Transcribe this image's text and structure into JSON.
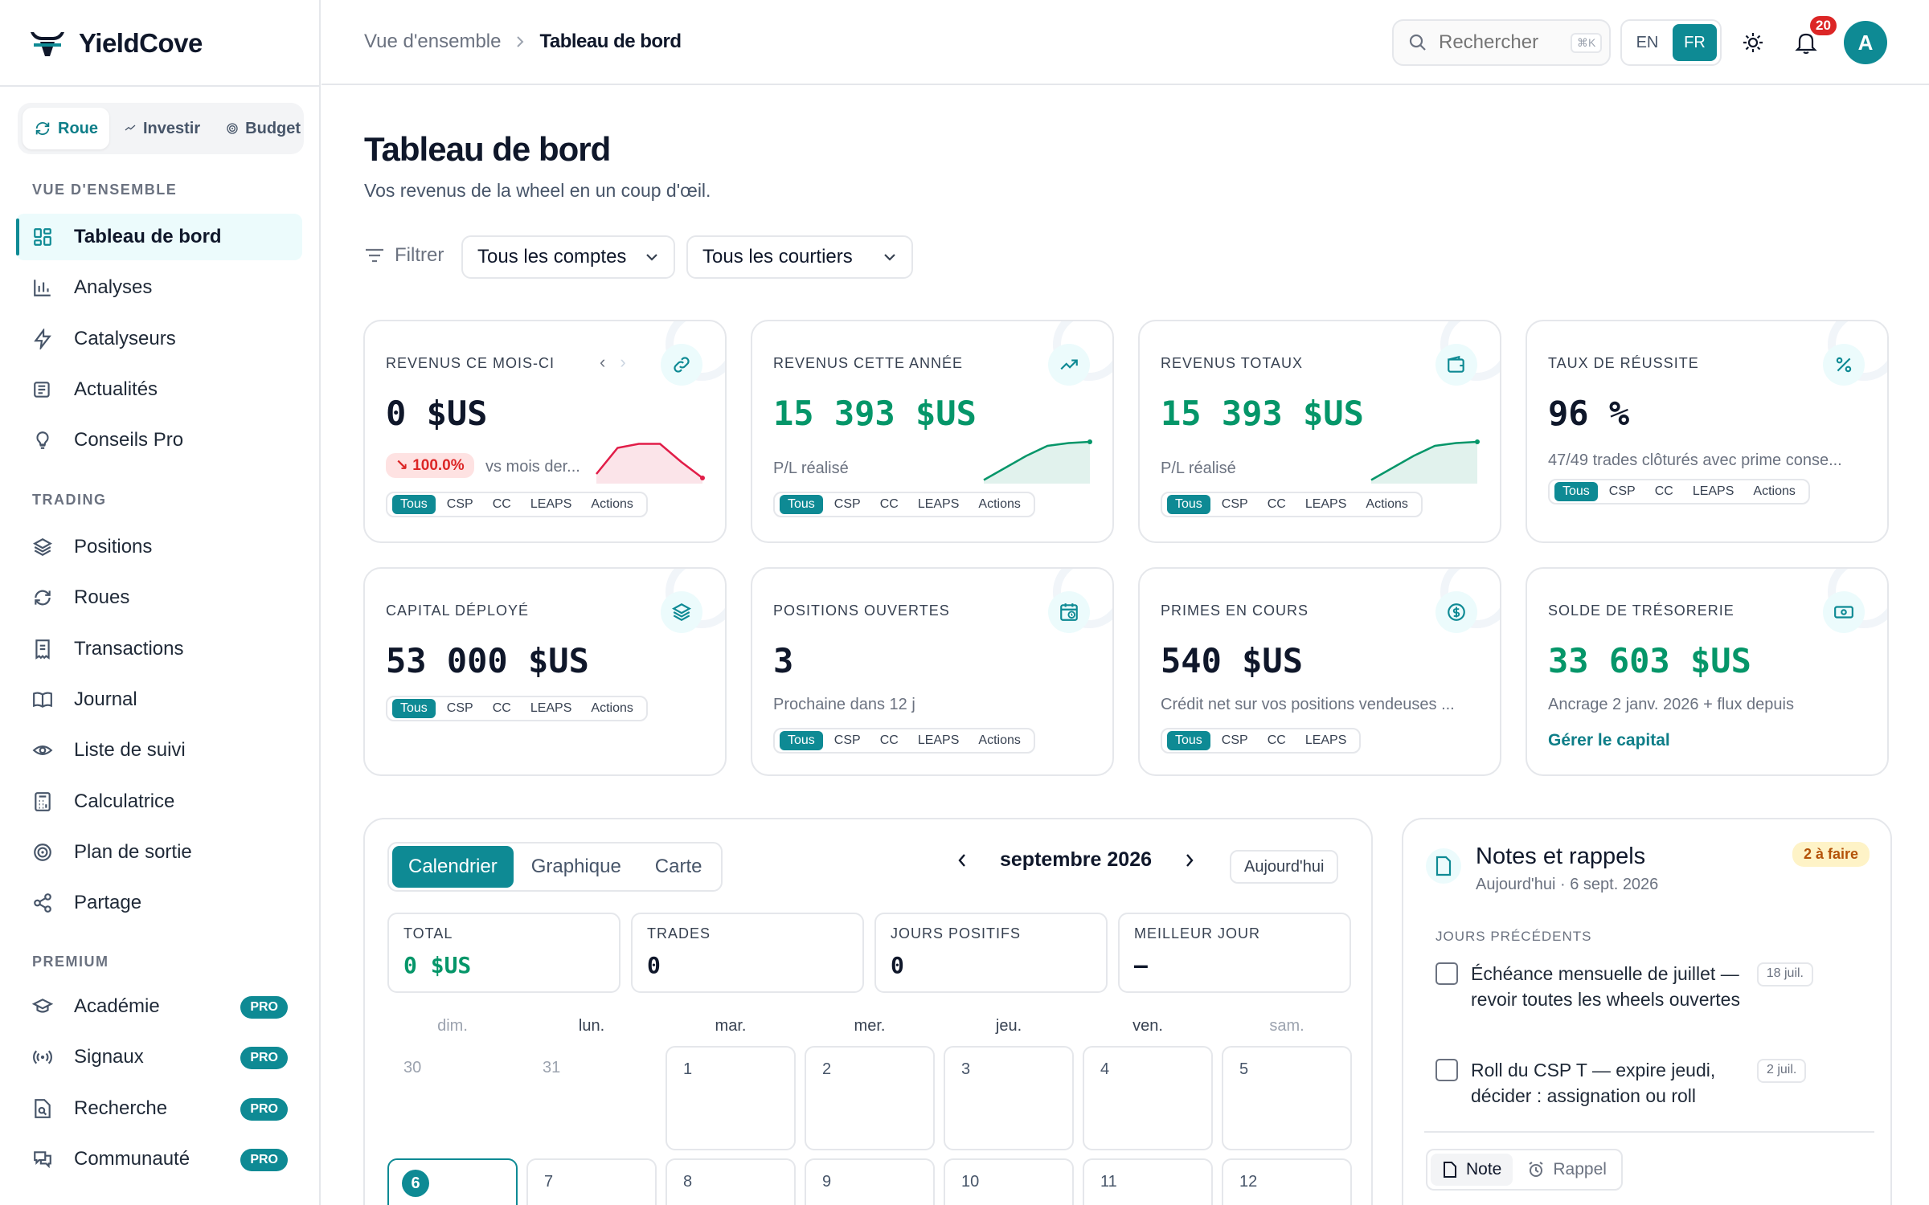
{
  "app": {
    "name": "YieldCove"
  },
  "mode_switch": {
    "items": [
      {
        "label": "Roue",
        "icon": "refresh-icon"
      },
      {
        "label": "Investir",
        "icon": "trend-icon"
      },
      {
        "label": "Budget",
        "icon": "target-icon"
      }
    ],
    "active": "Roue"
  },
  "sidebar": {
    "sections": [
      {
        "title": "VUE D'ENSEMBLE",
        "items": [
          {
            "label": "Tableau de bord",
            "icon": "grid-icon",
            "active": true
          },
          {
            "label": "Analyses",
            "icon": "bar-chart-icon"
          },
          {
            "label": "Catalyseurs",
            "icon": "bolt-icon"
          },
          {
            "label": "Actualités",
            "icon": "newspaper-icon"
          },
          {
            "label": "Conseils Pro",
            "icon": "lightbulb-icon"
          }
        ]
      },
      {
        "title": "TRADING",
        "items": [
          {
            "label": "Positions",
            "icon": "layers-icon"
          },
          {
            "label": "Roues",
            "icon": "refresh-icon"
          },
          {
            "label": "Transactions",
            "icon": "receipt-icon"
          },
          {
            "label": "Journal",
            "icon": "book-icon"
          },
          {
            "label": "Liste de suivi",
            "icon": "eye-icon"
          },
          {
            "label": "Calculatrice",
            "icon": "calculator-icon"
          },
          {
            "label": "Plan de sortie",
            "icon": "target-icon"
          },
          {
            "label": "Partage",
            "icon": "share-icon"
          }
        ]
      },
      {
        "title": "PREMIUM",
        "items": [
          {
            "label": "Académie",
            "icon": "graduation-cap-icon",
            "badge": "PRO"
          },
          {
            "label": "Signaux",
            "icon": "radio-icon",
            "badge": "PRO"
          },
          {
            "label": "Recherche",
            "icon": "file-search-icon",
            "badge": "PRO"
          },
          {
            "label": "Communauté",
            "icon": "chat-icon",
            "badge": "PRO"
          }
        ]
      }
    ]
  },
  "header": {
    "breadcrumb": [
      "Vue d'ensemble",
      "Tableau de bord"
    ],
    "search_placeholder": "Rechercher",
    "search_shortcut": "⌘K",
    "languages": [
      "EN",
      "FR"
    ],
    "active_language": "FR",
    "notifications_count": "20",
    "avatar_initial": "A"
  },
  "page": {
    "title": "Tableau de bord",
    "subtitle": "Vos revenus de la wheel en un coup d'œil.",
    "filter_label": "Filtrer",
    "account_filter": "Tous les comptes",
    "broker_filter": "Tous les courtiers"
  },
  "cards": [
    {
      "label": "REVENUS CE MOIS-CI",
      "value": "0 $US",
      "delta": "↘ 100.0%",
      "sub": "vs mois der...",
      "pills": [
        "Tous",
        "CSP",
        "CC",
        "LEAPS",
        "Actions"
      ],
      "icon": "link-icon",
      "spark_color": "#e11d48",
      "spark": [
        0.2,
        0.85,
        0.95,
        0.95,
        0.5,
        0.1
      ]
    },
    {
      "label": "REVENUS CETTE ANNÉE",
      "value": "15 393 $US",
      "sub": "P/L réalisé",
      "pills": [
        "Tous",
        "CSP",
        "CC",
        "LEAPS",
        "Actions"
      ],
      "icon": "trending-up-icon",
      "spark_color": "#059669",
      "spark": [
        0.05,
        0.35,
        0.65,
        0.9,
        0.97,
        1
      ]
    },
    {
      "label": "REVENUS TOTAUX",
      "value": "15 393 $US",
      "sub": "P/L réalisé",
      "pills": [
        "Tous",
        "CSP",
        "CC",
        "LEAPS",
        "Actions"
      ],
      "icon": "wallet-icon",
      "spark_color": "#059669",
      "spark": [
        0.05,
        0.35,
        0.65,
        0.9,
        0.97,
        1
      ]
    },
    {
      "label": "TAUX DE RÉUSSITE",
      "value": "96 %",
      "sub": "47/49 trades clôturés avec prime conse...",
      "pills": [
        "Tous",
        "CSP",
        "CC",
        "LEAPS",
        "Actions"
      ],
      "icon": "percent-icon"
    },
    {
      "label": "CAPITAL DÉPLOYÉ",
      "value": "53 000 $US",
      "pills": [
        "Tous",
        "CSP",
        "CC",
        "LEAPS",
        "Actions"
      ],
      "icon": "layers-icon"
    },
    {
      "label": "POSITIONS OUVERTES",
      "value": "3",
      "sub": "Prochaine dans 12 j",
      "pills": [
        "Tous",
        "CSP",
        "CC",
        "LEAPS",
        "Actions"
      ],
      "icon": "calendar-clock-icon"
    },
    {
      "label": "PRIMES EN COURS",
      "value": "540 $US",
      "sub": "Crédit net sur vos positions vendeuses ...",
      "pills": [
        "Tous",
        "CSP",
        "CC",
        "LEAPS"
      ],
      "icon": "dollar-circle-icon"
    },
    {
      "label": "SOLDE DE TRÉSORERIE",
      "value": "33 603 $US",
      "sub": "Ancrage 2 janv. 2026 + flux depuis",
      "link": "Gérer le capital",
      "icon": "banknote-icon"
    }
  ],
  "calendar": {
    "tabs": [
      "Calendrier",
      "Graphique",
      "Carte"
    ],
    "active_tab": "Calendrier",
    "month": "septembre 2026",
    "today_label": "Aujourd'hui",
    "stats": [
      {
        "label": "TOTAL",
        "value": "0 $US"
      },
      {
        "label": "TRADES",
        "value": "0"
      },
      {
        "label": "JOURS POSITIFS",
        "value": "0"
      },
      {
        "label": "MEILLEUR JOUR",
        "value": "—"
      }
    ],
    "weekdays": [
      "dim.",
      "lun.",
      "mar.",
      "mer.",
      "jeu.",
      "ven.",
      "sam."
    ],
    "week1": [
      "30",
      "31",
      "1",
      "2",
      "3",
      "4",
      "5"
    ],
    "week2": [
      "6",
      "7",
      "8",
      "9",
      "10",
      "11",
      "12"
    ],
    "today_day": "6"
  },
  "notes": {
    "title": "Notes et rappels",
    "date": "Aujourd'hui · 6 sept. 2026",
    "badge": "2 à faire",
    "section": "JOURS PRÉCÉDENTS",
    "todos": [
      {
        "text": "Échéance mensuelle de juillet — revoir toutes les wheels ouvertes",
        "tag": "18 juil."
      },
      {
        "text": "Roll du CSP T — expire jeudi, décider : assignation ou roll",
        "tag": "2 juil."
      }
    ],
    "tabs": [
      "Note",
      "Rappel"
    ]
  }
}
